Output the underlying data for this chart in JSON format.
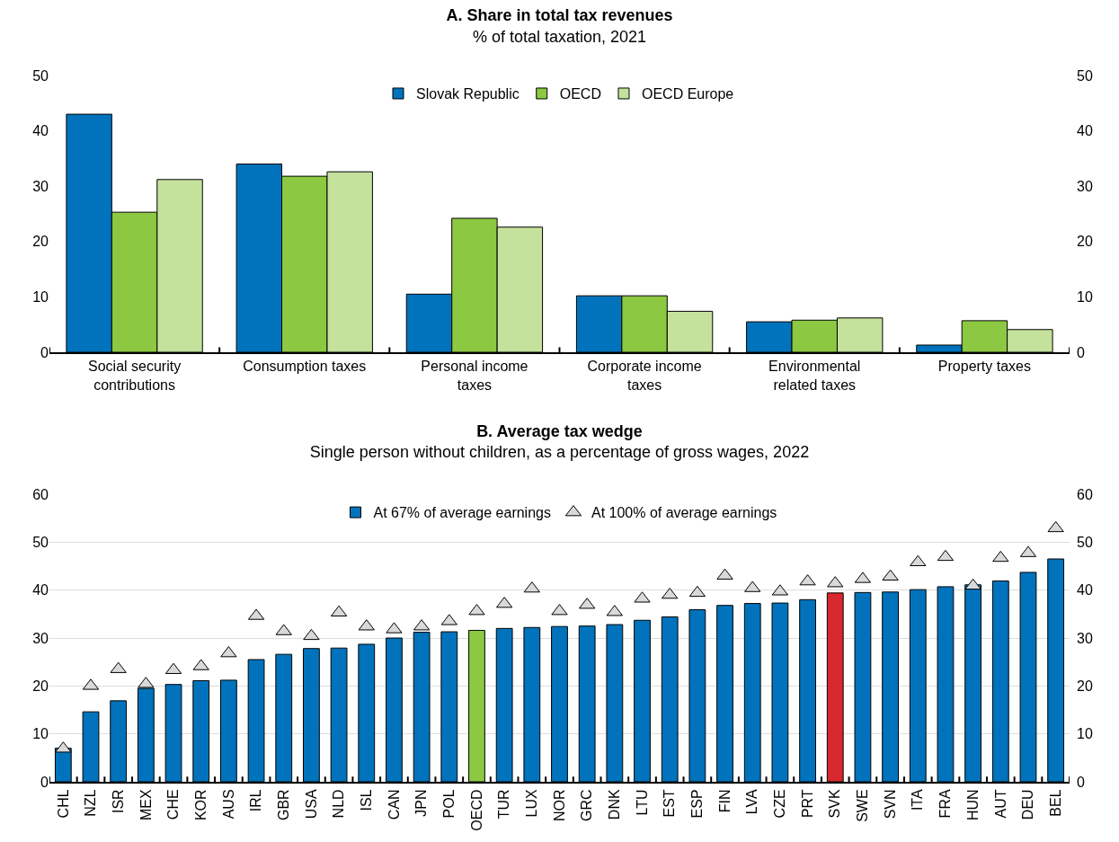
{
  "chart_data": [
    {
      "type": "bar",
      "title": "A. Share in total tax revenues",
      "subtitle": "% of total taxation, 2021",
      "categories": [
        "Social security contributions",
        "Consumption taxes",
        "Personal income taxes",
        "Corporate income taxes",
        "Environmental related taxes",
        "Property taxes"
      ],
      "series": [
        {
          "name": "Slovak Republic",
          "color": "#0073bc",
          "values": [
            43.0,
            34.0,
            10.5,
            10.2,
            5.5,
            1.3
          ]
        },
        {
          "name": "OECD",
          "color": "#8cc841",
          "values": [
            25.3,
            31.8,
            24.2,
            10.2,
            5.8,
            5.7
          ]
        },
        {
          "name": "OECD Europe",
          "color": "#c5e29c",
          "values": [
            31.2,
            32.6,
            22.6,
            7.4,
            6.2,
            4.1
          ]
        }
      ],
      "ylim": [
        0,
        50
      ],
      "yticks": [
        0,
        10,
        20,
        30,
        40,
        50
      ],
      "y2lim": [
        0,
        50
      ],
      "y2ticks": [
        0,
        10,
        20,
        30,
        40,
        50
      ],
      "grid": false,
      "legend": "top"
    },
    {
      "type": "bar",
      "title": "B. Average tax wedge",
      "subtitle": "Single person without children, as a percentage of gross wages, 2022",
      "categories": [
        "CHL",
        "NZL",
        "ISR",
        "MEX",
        "CHE",
        "KOR",
        "AUS",
        "IRL",
        "GBR",
        "USA",
        "NLD",
        "ISL",
        "CAN",
        "JPN",
        "POL",
        "OECD",
        "TUR",
        "LUX",
        "NOR",
        "GRC",
        "DNK",
        "LTU",
        "EST",
        "ESP",
        "FIN",
        "LVA",
        "CZE",
        "PRT",
        "SVK",
        "SWE",
        "SVN",
        "ITA",
        "FRA",
        "HUN",
        "AUT",
        "DEU",
        "BEL"
      ],
      "series": [
        {
          "name": "At 67% of average earnings",
          "colors": [
            "#0073bc",
            "#0073bc",
            "#0073bc",
            "#0073bc",
            "#0073bc",
            "#0073bc",
            "#0073bc",
            "#0073bc",
            "#0073bc",
            "#0073bc",
            "#0073bc",
            "#0073bc",
            "#0073bc",
            "#0073bc",
            "#0073bc",
            "#8cc841",
            "#0073bc",
            "#0073bc",
            "#0073bc",
            "#0073bc",
            "#0073bc",
            "#0073bc",
            "#0073bc",
            "#0073bc",
            "#0073bc",
            "#0073bc",
            "#0073bc",
            "#0073bc",
            "#d7282f",
            "#0073bc",
            "#0073bc",
            "#0073bc",
            "#0073bc",
            "#0073bc",
            "#0073bc",
            "#0073bc",
            "#0073bc"
          ],
          "values": [
            7.0,
            14.6,
            16.9,
            19.5,
            20.3,
            21.1,
            21.2,
            25.5,
            26.6,
            27.8,
            27.9,
            28.7,
            30.0,
            31.2,
            31.3,
            31.6,
            32.0,
            32.2,
            32.4,
            32.5,
            32.8,
            33.7,
            34.4,
            35.9,
            36.8,
            37.2,
            37.3,
            38.0,
            39.4,
            39.5,
            39.6,
            40.1,
            40.7,
            41.1,
            41.9,
            43.7,
            46.5
          ]
        },
        {
          "name": "At 100% of average earnings",
          "type": "scatter",
          "marker": "triangle",
          "color": "#d9d9d9",
          "values": [
            6.9,
            20.0,
            23.5,
            20.4,
            23.3,
            24.1,
            26.8,
            34.6,
            31.4,
            30.4,
            35.3,
            32.4,
            31.8,
            32.4,
            33.5,
            35.6,
            37.1,
            40.3,
            35.6,
            36.9,
            35.4,
            38.2,
            39.0,
            39.4,
            43.0,
            40.4,
            39.7,
            41.8,
            41.4,
            42.3,
            42.8,
            45.8,
            46.9,
            40.9,
            46.7,
            47.7,
            52.9
          ]
        }
      ],
      "ylim": [
        0,
        60
      ],
      "yticks": [
        0,
        10,
        20,
        30,
        40,
        50,
        60
      ],
      "y2lim": [
        0,
        60
      ],
      "y2ticks": [
        0,
        10,
        20,
        30,
        40,
        50,
        60
      ],
      "grid": "y",
      "legend": "top"
    }
  ]
}
